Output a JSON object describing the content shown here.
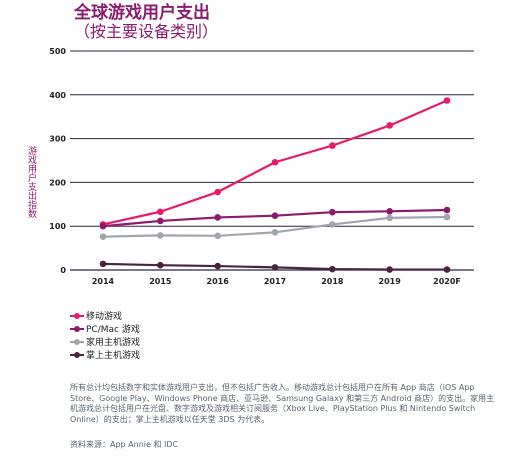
{
  "title": "全球游戏用户支出",
  "subtitle": "（按主要设备类别）",
  "chart_data": {
    "type": "line",
    "ylabel": "游戏用户支出指数",
    "x": [
      "2014",
      "2015",
      "2016",
      "2017",
      "2018",
      "2019",
      "2020F"
    ],
    "ylim": [
      0,
      500
    ],
    "yticks": [
      "0",
      "100",
      "200",
      "300",
      "400",
      "500"
    ],
    "grid": true,
    "legend_position": "bottom-left",
    "series": [
      {
        "name": "移动游戏",
        "color": "#e8196b",
        "values": [
          104,
          133,
          178,
          246,
          284,
          330,
          387
        ]
      },
      {
        "name": "PC/Mac 游戏",
        "color": "#8b1a6e",
        "values": [
          100,
          112,
          120,
          124,
          132,
          134,
          137
        ]
      },
      {
        "name": "家用主机游戏",
        "color": "#a1a5ae",
        "values": [
          76,
          79,
          78,
          86,
          104,
          119,
          121
        ]
      },
      {
        "name": "掌上主机游戏",
        "color": "#4a2340",
        "values": [
          14,
          11,
          9,
          6,
          2,
          1,
          1
        ]
      }
    ]
  },
  "footnote": "所有总计均包括数字和实体游戏用户支出，但不包括广告收入。移动游戏总计包括用户在所有 App 商店（iOS App Store、Google Play、Windows Phone 商店、亚马逊、Samsung Galaxy 和第三方 Android 商店）的支出。家用主机游戏总计包括用户在光盘、数字游戏及游戏相关订阅服务（Xbox Live、PlayStation Plus 和 Nintendo Switch Online）的支出；掌上主机游戏以任天堂 3DS 为代表。",
  "source": "资料来源：App Annie 和 IDC"
}
